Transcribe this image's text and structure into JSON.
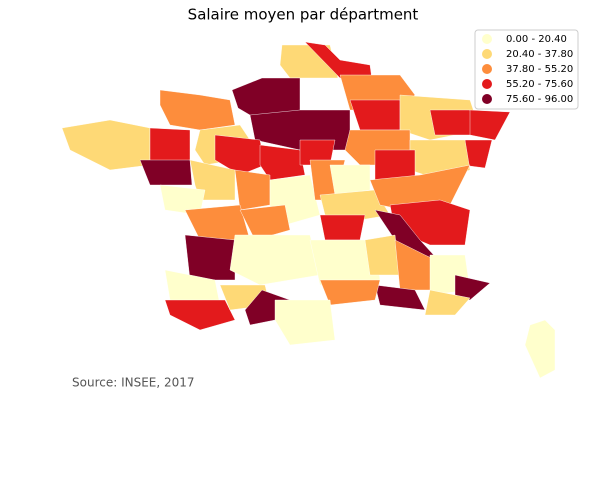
{
  "chart_data": {
    "type": "choropleth",
    "title": "Salaire moyen par départment",
    "legend": [
      {
        "label": "0.00 - 20.40",
        "color": "#ffffcc"
      },
      {
        "label": "20.40 - 37.80",
        "color": "#fed976"
      },
      {
        "label": "37.80 - 55.20",
        "color": "#fd8d3c"
      },
      {
        "label": "55.20 - 75.60",
        "color": "#e31a1c"
      },
      {
        "label": "75.60 - 96.00",
        "color": "#800026"
      }
    ],
    "source": "Source: INSEE, 2017"
  }
}
